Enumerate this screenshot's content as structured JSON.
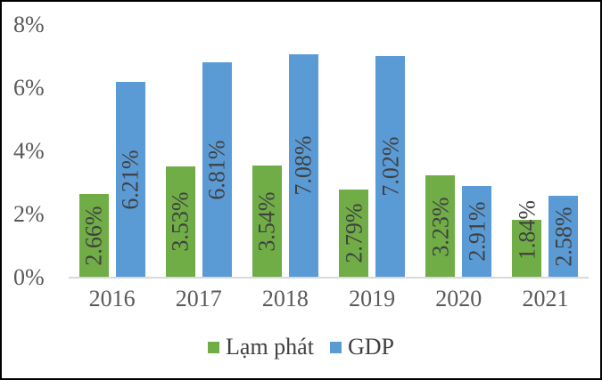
{
  "chart_data": {
    "type": "bar",
    "title": "",
    "categories": [
      "2016",
      "2017",
      "2018",
      "2019",
      "2020",
      "2021"
    ],
    "series": [
      {
        "name": "Lạm phát",
        "color": "#70AD47",
        "values": [
          2.66,
          3.53,
          3.54,
          2.79,
          3.23,
          1.84
        ],
        "labels": [
          "2.66%",
          "3.53%",
          "3.54%",
          "2.79%",
          "3.23%",
          "1.84%"
        ]
      },
      {
        "name": "GDP",
        "color": "#5B9BD5",
        "values": [
          6.21,
          6.81,
          7.08,
          7.02,
          2.91,
          2.58
        ],
        "labels": [
          "6.21%",
          "6.81%",
          "7.08%",
          "7.02%",
          "2.91%",
          "2.58%"
        ]
      }
    ],
    "ylim": [
      0,
      8
    ],
    "yticks": [
      {
        "value": 0,
        "label": "0%"
      },
      {
        "value": 2,
        "label": "2%"
      },
      {
        "value": 4,
        "label": "4%"
      },
      {
        "value": 6,
        "label": "6%"
      },
      {
        "value": 8,
        "label": "8%"
      }
    ],
    "grid": false,
    "data_label_rotation_deg": 90,
    "legend_position": "bottom"
  },
  "colors": {
    "axis_text": "#595959",
    "data_label_text": "#404040",
    "axis_line": "#D9D9D9",
    "border": "#000000",
    "background": "#FFFFFF"
  }
}
